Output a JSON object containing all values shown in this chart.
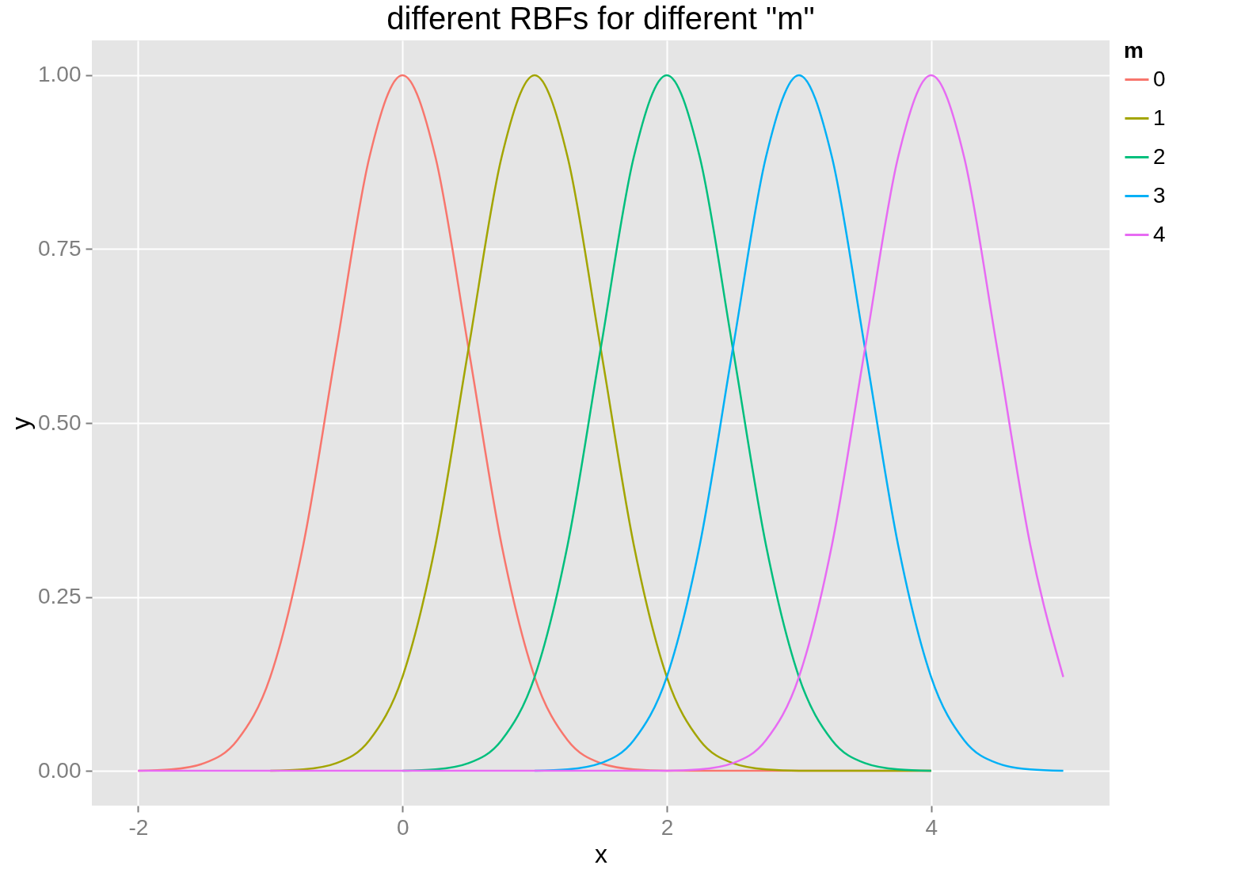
{
  "chart_data": {
    "type": "line",
    "title": "different RBFs for different \"m\"",
    "xlabel": "x",
    "ylabel": "y",
    "legend_title": "m",
    "x": [
      -2,
      -1.75,
      -1.5,
      -1.25,
      -1,
      -0.75,
      -0.5,
      -0.25,
      0,
      0.25,
      0.5,
      0.75,
      1,
      1.25,
      1.5,
      1.75,
      2,
      2.25,
      2.5,
      2.75,
      3,
      3.25,
      3.5,
      3.75,
      4,
      4.25,
      4.5,
      4.75,
      5
    ],
    "series": [
      {
        "name": "0",
        "color": "#f8766d",
        "values": [
          0,
          0.002,
          0.011,
          0.044,
          0.135,
          0.325,
          0.607,
          0.882,
          1,
          0.882,
          0.607,
          0.325,
          0.135,
          0.044,
          0.011,
          0.002,
          0,
          0,
          0,
          0,
          0,
          0,
          0,
          0,
          0,
          null,
          null,
          null,
          null
        ]
      },
      {
        "name": "1",
        "color": "#a3a500",
        "values": [
          null,
          null,
          null,
          null,
          0,
          0.002,
          0.011,
          0.044,
          0.135,
          0.325,
          0.607,
          0.882,
          1,
          0.882,
          0.607,
          0.325,
          0.135,
          0.044,
          0.011,
          0.002,
          0,
          0,
          0,
          0,
          0,
          null,
          null,
          null,
          null
        ]
      },
      {
        "name": "2",
        "color": "#00bf7d",
        "values": [
          null,
          null,
          null,
          null,
          null,
          null,
          null,
          null,
          0,
          0.002,
          0.011,
          0.044,
          0.135,
          0.325,
          0.607,
          0.882,
          1,
          0.882,
          0.607,
          0.325,
          0.135,
          0.044,
          0.011,
          0.002,
          0,
          null,
          null,
          null,
          null
        ]
      },
      {
        "name": "3",
        "color": "#00b0f6",
        "values": [
          null,
          null,
          null,
          null,
          null,
          null,
          null,
          null,
          null,
          null,
          null,
          null,
          0,
          0.002,
          0.011,
          0.044,
          0.135,
          0.325,
          0.607,
          0.882,
          1,
          0.882,
          0.607,
          0.325,
          0.135,
          0.044,
          0.011,
          0.002,
          0
        ]
      },
      {
        "name": "4",
        "color": "#e76bf3",
        "values": [
          0,
          0,
          0,
          0,
          0,
          0,
          0,
          0,
          0,
          0,
          0,
          0,
          0,
          0,
          0,
          0,
          0,
          0.002,
          0.011,
          0.044,
          0.135,
          0.325,
          0.607,
          0.882,
          1,
          0.882,
          0.607,
          0.325,
          0.135
        ]
      }
    ],
    "xlim": [
      -2.35,
      5.35
    ],
    "ylim": [
      -0.05,
      1.05
    ],
    "xticks": [
      -2,
      0,
      2,
      4
    ],
    "yticks": [
      {
        "value": 0,
        "label": "0.00"
      },
      {
        "value": 0.25,
        "label": "0.25"
      },
      {
        "value": 0.5,
        "label": "0.50"
      },
      {
        "value": 0.75,
        "label": "0.75"
      },
      {
        "value": 1,
        "label": "1.00"
      }
    ],
    "grid": true,
    "legend": "right",
    "line_style": "solid",
    "marker": "none"
  }
}
